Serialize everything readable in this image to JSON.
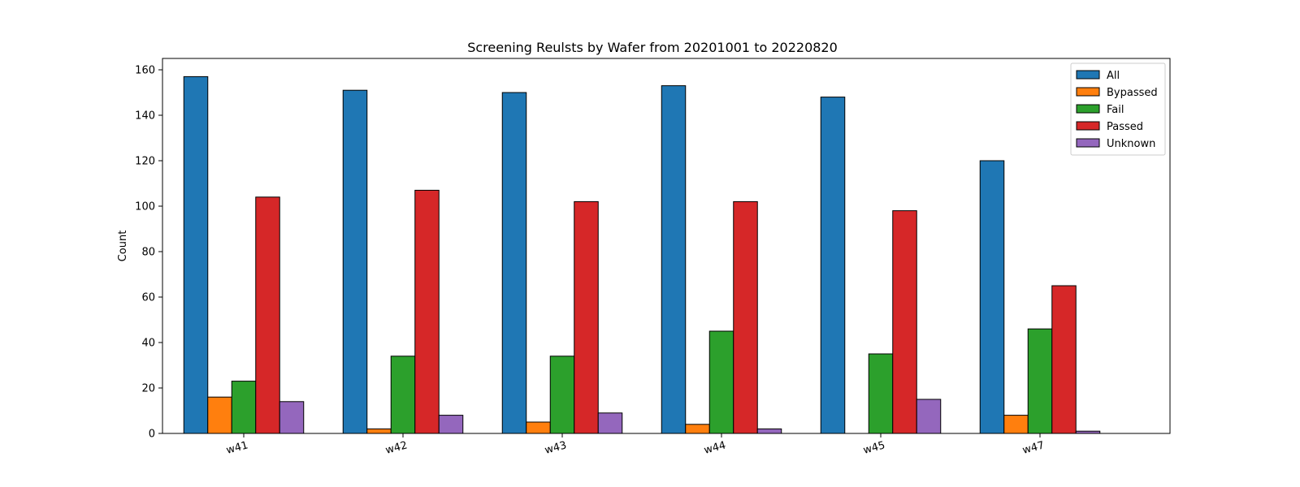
{
  "chart_data": {
    "type": "bar",
    "title": "Screening Reulsts by Wafer from 20201001 to 20220820",
    "xlabel": "",
    "ylabel": "Count",
    "ylim": [
      0,
      165
    ],
    "yticks": [
      0,
      20,
      40,
      60,
      80,
      100,
      120,
      140,
      160
    ],
    "categories": [
      "w41",
      "w42",
      "w43",
      "w44",
      "w45",
      "w47"
    ],
    "series": [
      {
        "name": "All",
        "color": "#1f77b4",
        "values": [
          157,
          151,
          150,
          153,
          148,
          120
        ]
      },
      {
        "name": "Bypassed",
        "color": "#ff7f0e",
        "values": [
          16,
          2,
          5,
          4,
          0,
          8
        ]
      },
      {
        "name": "Fail",
        "color": "#2ca02c",
        "values": [
          23,
          34,
          34,
          45,
          35,
          46
        ]
      },
      {
        "name": "Passed",
        "color": "#d62728",
        "values": [
          104,
          107,
          102,
          102,
          98,
          65
        ]
      },
      {
        "name": "Unknown",
        "color": "#9467bd",
        "values": [
          14,
          8,
          9,
          2,
          15,
          1
        ]
      }
    ],
    "legend_position": "top-right",
    "grid": false
  }
}
